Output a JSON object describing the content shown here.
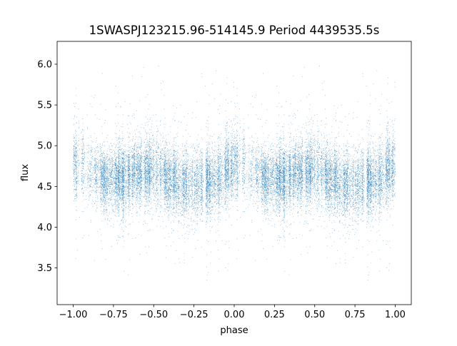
{
  "chart_data": {
    "type": "scatter",
    "title": "1SWASPJ123215.96-514145.9 Period 4439535.5s",
    "xlabel": "phase",
    "ylabel": "flux",
    "xlim": [
      -1.1,
      1.1
    ],
    "ylim": [
      3.05,
      6.28
    ],
    "x_ticks": [
      -1.0,
      -0.75,
      -0.5,
      -0.25,
      0.0,
      0.25,
      0.5,
      0.75,
      1.0
    ],
    "x_tick_labels": [
      "−1.00",
      "−0.75",
      "−0.50",
      "−0.25",
      "0.00",
      "0.25",
      "0.50",
      "0.75",
      "1.00"
    ],
    "y_ticks": [
      3.5,
      4.0,
      4.5,
      5.0,
      5.5,
      6.0
    ],
    "y_tick_labels": [
      "3.5",
      "4.0",
      "4.5",
      "5.0",
      "5.5",
      "6.0"
    ],
    "grid": false,
    "legend": "none",
    "marker_color": "#1f77b4",
    "series": [
      {
        "x_range": [
          -1.0,
          1.0
        ],
        "folding": "phase repeated twice (two cycles shown)",
        "approx_points": 36000,
        "profile": [
          {
            "phase": 0.0,
            "median_flux": 4.8,
            "spread": 0.2
          },
          {
            "phase": 0.05,
            "median_flux": 4.76,
            "spread": 0.2
          },
          {
            "phase": 0.1,
            "median_flux": 4.7,
            "spread": 0.2
          },
          {
            "phase": 0.15,
            "median_flux": 4.62,
            "spread": 0.18
          },
          {
            "phase": 0.2,
            "median_flux": 4.57,
            "spread": 0.18
          },
          {
            "phase": 0.25,
            "median_flux": 4.55,
            "spread": 0.18
          },
          {
            "phase": 0.3,
            "median_flux": 4.56,
            "spread": 0.19
          },
          {
            "phase": 0.35,
            "median_flux": 4.6,
            "spread": 0.19
          },
          {
            "phase": 0.4,
            "median_flux": 4.65,
            "spread": 0.19
          },
          {
            "phase": 0.45,
            "median_flux": 4.7,
            "spread": 0.2
          },
          {
            "phase": 0.5,
            "median_flux": 4.72,
            "spread": 0.21
          },
          {
            "phase": 0.55,
            "median_flux": 4.66,
            "spread": 0.2
          },
          {
            "phase": 0.6,
            "median_flux": 4.58,
            "spread": 0.2
          },
          {
            "phase": 0.65,
            "median_flux": 4.54,
            "spread": 0.2
          },
          {
            "phase": 0.7,
            "median_flux": 4.53,
            "spread": 0.2
          },
          {
            "phase": 0.75,
            "median_flux": 4.52,
            "spread": 0.2
          },
          {
            "phase": 0.8,
            "median_flux": 4.53,
            "spread": 0.2
          },
          {
            "phase": 0.85,
            "median_flux": 4.56,
            "spread": 0.19
          },
          {
            "phase": 0.9,
            "median_flux": 4.62,
            "spread": 0.19
          },
          {
            "phase": 0.95,
            "median_flux": 4.72,
            "spread": 0.2
          },
          {
            "phase": 1.0,
            "median_flux": 4.8,
            "spread": 0.2
          }
        ],
        "flux_min": 3.2,
        "flux_max": 6.1
      }
    ]
  }
}
